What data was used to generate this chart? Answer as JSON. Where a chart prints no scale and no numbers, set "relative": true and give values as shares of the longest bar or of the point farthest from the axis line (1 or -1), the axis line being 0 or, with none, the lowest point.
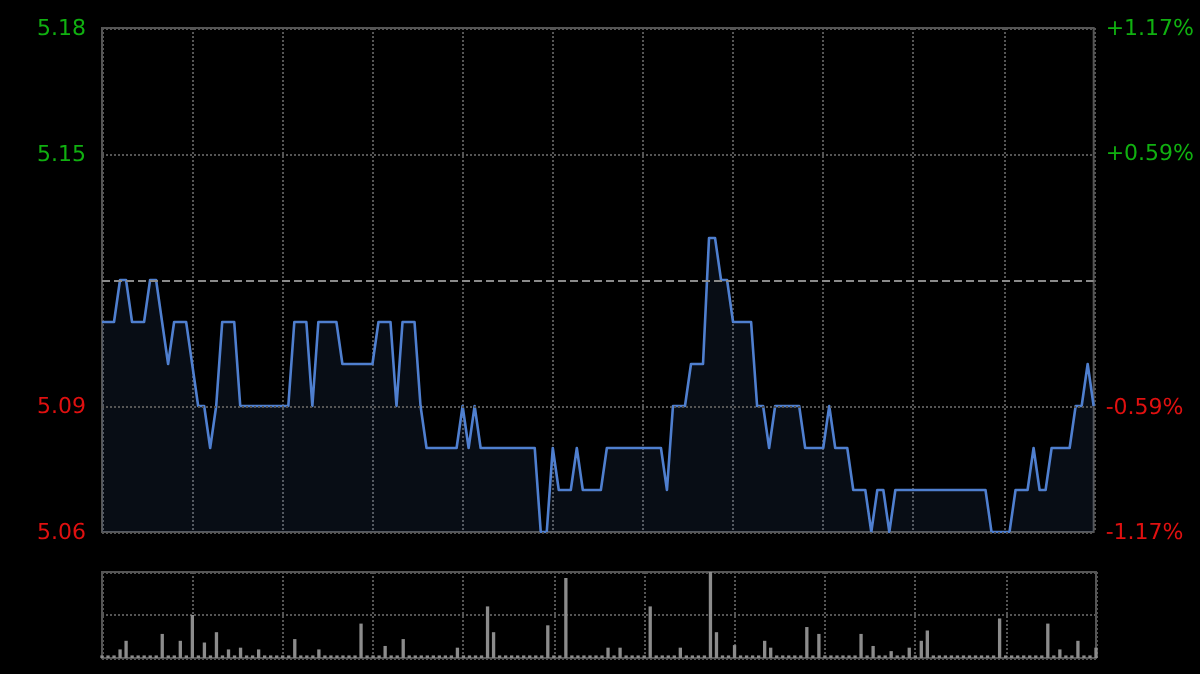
{
  "chart_data": [
    {
      "type": "area",
      "categories": [
        null,
        null,
        null,
        null,
        null,
        null,
        null,
        null,
        null,
        null,
        null,
        null,
        null,
        null,
        null,
        null,
        null,
        null,
        null,
        null,
        null,
        null,
        null,
        null,
        null,
        null,
        null,
        null,
        null,
        null,
        null,
        null,
        null,
        null,
        null,
        null,
        null,
        null,
        null,
        null,
        null,
        null,
        null,
        null,
        null,
        null,
        null,
        null,
        null,
        null,
        null,
        null,
        null,
        null,
        null,
        null,
        null,
        null,
        null,
        null,
        null,
        null,
        null,
        null,
        null,
        null,
        null,
        null,
        null,
        null,
        null,
        null,
        null,
        null,
        null,
        null,
        null,
        null,
        null,
        null,
        null,
        null,
        null,
        null,
        null,
        null,
        null,
        null,
        null,
        null,
        null,
        null,
        null,
        null,
        null,
        null,
        null,
        null,
        null,
        null,
        null,
        null,
        null,
        null,
        null,
        null,
        null,
        null,
        null,
        null,
        null,
        null,
        null,
        null,
        null,
        null,
        null,
        null,
        null,
        null,
        null,
        null,
        null,
        null,
        null,
        null,
        null,
        null,
        null,
        null,
        null,
        null,
        null,
        null,
        null,
        null,
        null,
        null,
        null,
        null,
        null,
        null,
        null,
        null,
        null,
        null,
        null,
        null,
        null,
        null,
        null,
        null,
        null,
        null,
        null,
        null,
        null,
        null,
        null,
        null,
        null,
        null,
        null,
        null,
        null,
        null
      ],
      "series": [
        {
          "color": "#4f7fcf",
          "values": [
            5.11,
            5.11,
            5.11,
            5.12,
            5.12,
            5.11,
            5.11,
            5.11,
            5.12,
            5.12,
            5.11,
            5.1,
            5.11,
            5.11,
            5.11,
            5.1,
            5.09,
            5.09,
            5.08,
            5.09,
            5.11,
            5.11,
            5.11,
            5.09,
            5.09,
            5.09,
            5.09,
            5.09,
            5.09,
            5.09,
            5.09,
            5.09,
            5.11,
            5.11,
            5.11,
            5.09,
            5.11,
            5.11,
            5.11,
            5.11,
            5.1,
            5.1,
            5.1,
            5.1,
            5.1,
            5.1,
            5.11,
            5.11,
            5.11,
            5.09,
            5.11,
            5.11,
            5.11,
            5.09,
            5.08,
            5.08,
            5.08,
            5.08,
            5.08,
            5.08,
            5.09,
            5.08,
            5.09,
            5.08,
            5.08,
            5.08,
            5.08,
            5.08,
            5.08,
            5.08,
            5.08,
            5.08,
            5.08,
            5.06,
            5.06,
            5.08,
            5.07,
            5.07,
            5.07,
            5.08,
            5.07,
            5.07,
            5.07,
            5.07,
            5.08,
            5.08,
            5.08,
            5.08,
            5.08,
            5.08,
            5.08,
            5.08,
            5.08,
            5.08,
            5.07,
            5.09,
            5.09,
            5.09,
            5.1,
            5.1,
            5.1,
            5.13,
            5.13,
            5.12,
            5.12,
            5.11,
            5.11,
            5.11,
            5.11,
            5.09,
            5.09,
            5.08,
            5.09,
            5.09,
            5.09,
            5.09,
            5.09,
            5.08,
            5.08,
            5.08,
            5.08,
            5.09,
            5.08,
            5.08,
            5.08,
            5.07,
            5.07,
            5.07,
            5.06,
            5.07,
            5.07,
            5.06,
            5.07,
            5.07,
            5.07,
            5.07,
            5.07,
            5.07,
            5.07,
            5.07,
            5.07,
            5.07,
            5.07,
            5.07,
            5.07,
            5.07,
            5.07,
            5.07,
            5.06,
            5.06,
            5.06,
            5.06,
            5.07,
            5.07,
            5.07,
            5.08,
            5.07,
            5.07,
            5.08,
            5.08,
            5.08,
            5.08,
            5.09,
            5.09,
            5.1,
            5.09
          ]
        }
      ],
      "ylim": [
        5.06,
        5.18
      ],
      "yticks": [
        5.06,
        5.09,
        5.15,
        5.18
      ],
      "y2lim": [
        -1.17,
        1.17
      ],
      "y2ticks": [
        {
          "value": 1.17,
          "label": "+1.17%"
        },
        {
          "value": 0.59,
          "label": "+0.59%"
        },
        {
          "value": -0.59,
          "label": "-0.59%"
        },
        {
          "value": -1.17,
          "label": "-1.17%"
        }
      ],
      "ref_lines": [
        {
          "axis": "y",
          "value": 5.12,
          "color": "#8a8a8a",
          "line_style": "dashed"
        }
      ],
      "grid": true,
      "line_style": "solid",
      "marker": "none"
    },
    {
      "type": "bar",
      "relative": true,
      "color": "#8c8c8c",
      "grid": true,
      "categories": [
        null,
        null,
        null,
        null,
        null,
        null,
        null,
        null,
        null,
        null,
        null,
        null,
        null,
        null,
        null,
        null,
        null,
        null,
        null,
        null,
        null,
        null,
        null,
        null,
        null,
        null,
        null,
        null,
        null,
        null,
        null,
        null,
        null,
        null,
        null,
        null,
        null,
        null,
        null,
        null,
        null,
        null,
        null,
        null,
        null,
        null,
        null,
        null,
        null,
        null,
        null,
        null,
        null,
        null,
        null,
        null,
        null,
        null,
        null,
        null,
        null,
        null,
        null,
        null,
        null,
        null,
        null,
        null,
        null,
        null,
        null,
        null,
        null,
        null,
        null,
        null,
        null,
        null,
        null,
        null,
        null,
        null,
        null,
        null,
        null,
        null,
        null,
        null,
        null,
        null,
        null,
        null,
        null,
        null,
        null,
        null,
        null,
        null,
        null,
        null,
        null,
        null,
        null,
        null,
        null,
        null,
        null,
        null,
        null,
        null,
        null,
        null,
        null,
        null,
        null,
        null,
        null,
        null,
        null,
        null,
        null,
        null,
        null,
        null,
        null,
        null,
        null,
        null,
        null,
        null,
        null,
        null,
        null,
        null,
        null,
        null,
        null,
        null,
        null,
        null,
        null,
        null,
        null,
        null,
        null,
        null,
        null,
        null,
        null,
        null,
        null,
        null,
        null,
        null,
        null,
        null,
        null,
        null,
        null,
        null,
        null,
        null,
        null,
        null,
        null,
        null
      ],
      "values": [
        0.03,
        0.03,
        0.03,
        0.1,
        0.2,
        0.03,
        0.03,
        0.03,
        0.03,
        0.03,
        0.28,
        0.03,
        0.03,
        0.2,
        0.03,
        0.5,
        0.03,
        0.18,
        0.03,
        0.3,
        0.03,
        0.1,
        0.03,
        0.12,
        0.03,
        0.03,
        0.1,
        0.03,
        0.03,
        0.03,
        0.03,
        0.03,
        0.22,
        0.03,
        0.03,
        0.03,
        0.1,
        0.03,
        0.03,
        0.03,
        0.03,
        0.03,
        0.03,
        0.4,
        0.03,
        0.03,
        0.03,
        0.14,
        0.03,
        0.03,
        0.22,
        0.03,
        0.03,
        0.03,
        0.03,
        0.03,
        0.03,
        0.03,
        0.03,
        0.12,
        0.03,
        0.03,
        0.03,
        0.03,
        0.6,
        0.3,
        0.03,
        0.03,
        0.03,
        0.03,
        0.03,
        0.03,
        0.03,
        0.03,
        0.38,
        0.03,
        0.03,
        0.93,
        0.03,
        0.03,
        0.03,
        0.03,
        0.03,
        0.03,
        0.12,
        0.03,
        0.12,
        0.03,
        0.03,
        0.03,
        0.03,
        0.6,
        0.03,
        0.03,
        0.03,
        0.03,
        0.12,
        0.03,
        0.03,
        0.03,
        0.03,
        1,
        0.3,
        0.03,
        0.03,
        0.15,
        0.03,
        0.03,
        0.03,
        0.03,
        0.2,
        0.12,
        0.03,
        0.03,
        0.03,
        0.03,
        0.03,
        0.36,
        0.03,
        0.28,
        0.03,
        0.03,
        0.03,
        0.03,
        0.03,
        0.03,
        0.28,
        0.03,
        0.14,
        0.03,
        0.03,
        0.08,
        0.03,
        0.03,
        0.12,
        0.03,
        0.2,
        0.32,
        0.03,
        0.03,
        0.03,
        0.03,
        0.03,
        0.03,
        0.03,
        0.03,
        0.03,
        0.03,
        0.03,
        0.46,
        0.03,
        0.03,
        0.03,
        0.03,
        0.03,
        0.03,
        0.03,
        0.4,
        0.03,
        0.1,
        0.03,
        0.03,
        0.2,
        0.03,
        0.03,
        0.12
      ]
    }
  ]
}
